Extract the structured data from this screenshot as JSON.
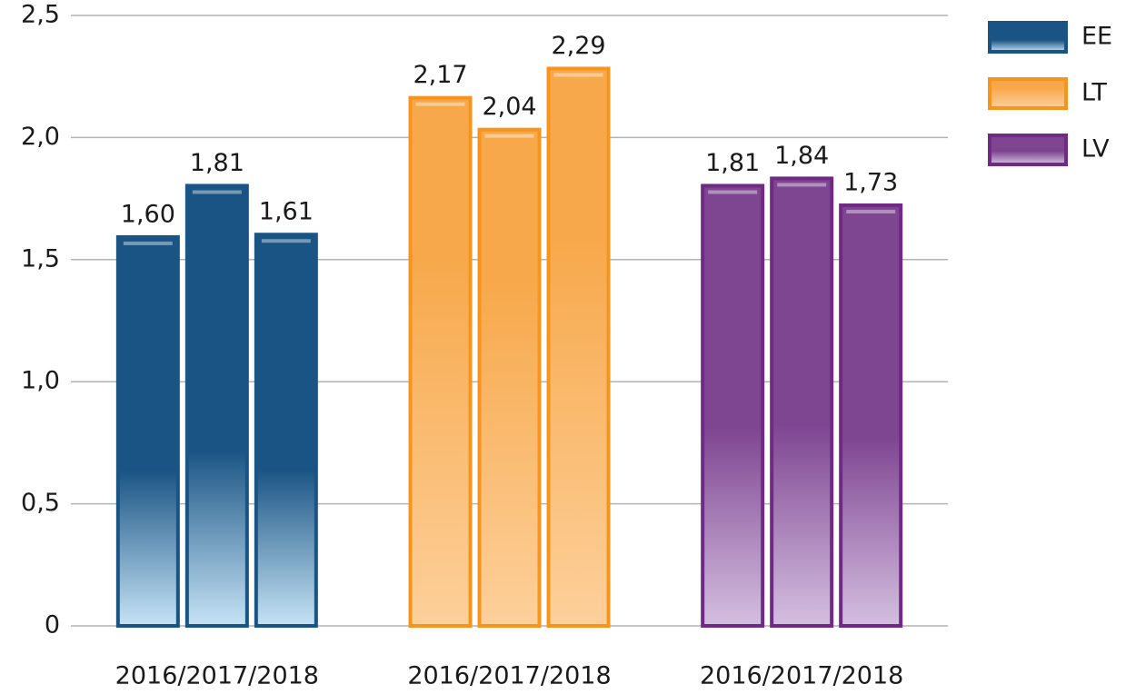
{
  "chart_data": {
    "type": "bar",
    "categories": [
      "2016/2017/2018",
      "2016/2017/2018",
      "2016/2017/2018"
    ],
    "series": [
      {
        "name": "EE",
        "color": "#1a5484",
        "values": [
          1.6,
          1.81,
          1.61
        ],
        "value_labels": [
          "1,60",
          "1,81",
          "1,61"
        ]
      },
      {
        "name": "LT",
        "color": "#f7941d",
        "values": [
          2.17,
          2.04,
          2.29
        ],
        "value_labels": [
          "2,17",
          "2,04",
          "2,29"
        ]
      },
      {
        "name": "LV",
        "color": "#6e2a84",
        "values": [
          1.81,
          1.84,
          1.73
        ],
        "value_labels": [
          "1,81",
          "1,84",
          "1,73"
        ]
      }
    ],
    "ylim": [
      0,
      2.5
    ],
    "yticks": [
      0,
      {
        "value": 0.5,
        "label": "0,5"
      },
      {
        "value": 1,
        "label": "1,0"
      },
      {
        "value": 1.5,
        "label": "1,5"
      },
      {
        "value": 2,
        "label": "2,0"
      },
      {
        "value": 2.5,
        "label": "2,5"
      }
    ],
    "grid": true,
    "legend": "right"
  }
}
